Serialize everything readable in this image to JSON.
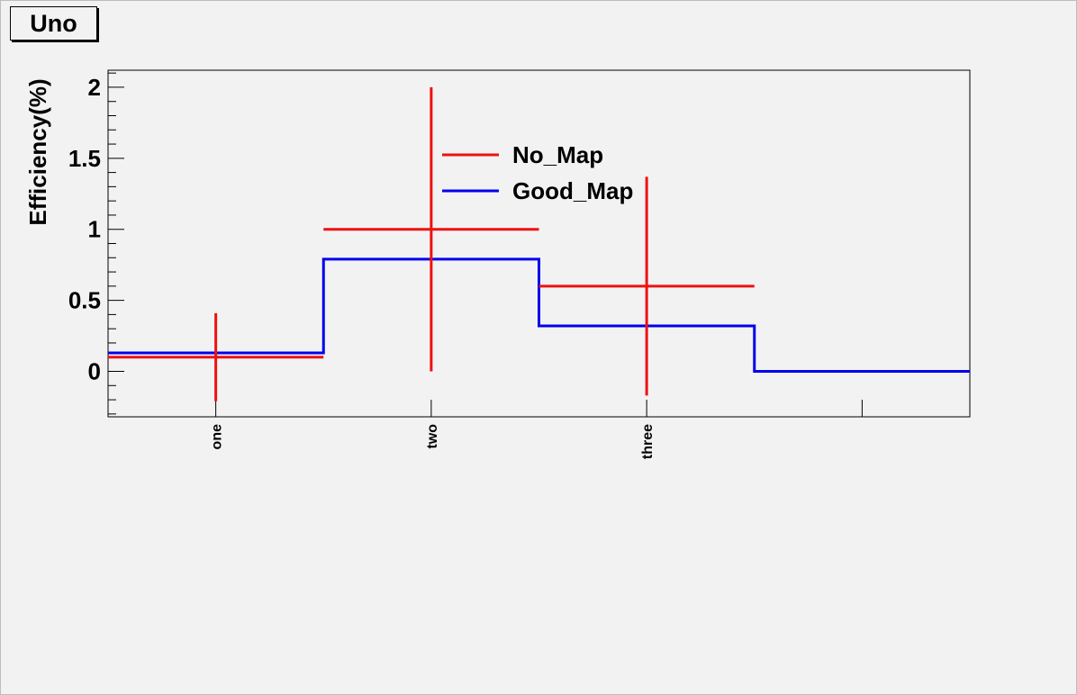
{
  "title": "Uno",
  "chart_data": {
    "type": "histogram",
    "ylabel": "Efficiency(%)",
    "xlabel": "",
    "categories": [
      "one",
      "two",
      "three",
      ""
    ],
    "ylim": [
      -0.32,
      2.12
    ],
    "yticks": [
      0,
      0.5,
      1,
      1.5,
      2
    ],
    "ytick_labels": [
      "0",
      "0.5",
      "1",
      "1.5",
      "2"
    ],
    "grid": false,
    "legend": "inside top-center",
    "series": [
      {
        "name": "No_Map",
        "color": "#ee1111",
        "style": "errorbars",
        "values": [
          0.1,
          1.0,
          0.6
        ],
        "errors": [
          0.31,
          1.0,
          0.77
        ]
      },
      {
        "name": "Good_Map",
        "color": "#0000ee",
        "style": "step",
        "values": [
          0.13,
          0.79,
          0.32,
          0.0
        ]
      }
    ]
  }
}
